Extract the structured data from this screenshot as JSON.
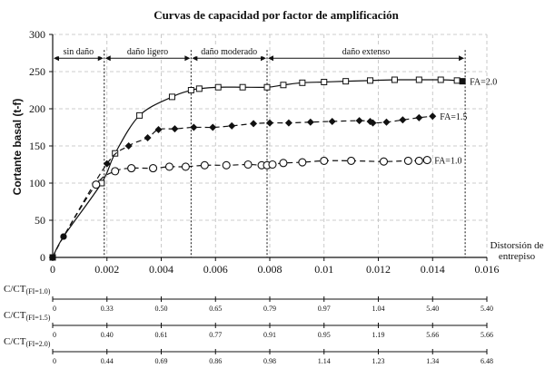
{
  "chart_data": {
    "type": "line",
    "title": "Curvas de capacidad por factor de amplificación",
    "ylabel": "Cortante basal (t-f)",
    "xlabel_lines": [
      "Distorsión de",
      "entrepiso"
    ],
    "xlim": [
      0,
      0.016
    ],
    "ylim": [
      0,
      300
    ],
    "x_ticks": [
      0,
      0.002,
      0.004,
      0.006,
      0.008,
      0.01,
      0.012,
      0.014,
      0.016
    ],
    "x_tick_labels": [
      "0",
      "0.002",
      "0.004",
      "0.006",
      "0.008",
      "0.01",
      "0.012",
      "0.014",
      "0.016"
    ],
    "y_ticks": [
      0,
      50,
      100,
      150,
      200,
      250,
      300
    ],
    "y_tick_labels": [
      "0",
      "50",
      "100",
      "150",
      "200",
      "250",
      "300"
    ],
    "grid": true,
    "damage_zones": [
      {
        "label": "sin daño",
        "x_start": 0,
        "x_end": 0.0019
      },
      {
        "label": "daño ligero",
        "x_start": 0.0019,
        "x_end": 0.0051
      },
      {
        "label": "daño moderado",
        "x_start": 0.0051,
        "x_end": 0.0079
      },
      {
        "label": "daño extenso",
        "x_start": 0.0079,
        "x_end": 0.0152
      }
    ],
    "zone_arrow_y": 268,
    "series": [
      {
        "name": "FA=2.0",
        "marker": "square",
        "line_style": "solid",
        "label_anchor": [
          0.0151,
          237
        ],
        "x": [
          0,
          0.0004,
          0.0018,
          0.0023,
          0.0032,
          0.0044,
          0.0051,
          0.0054,
          0.0061,
          0.007,
          0.0079,
          0.0085,
          0.0092,
          0.01,
          0.0108,
          0.0117,
          0.0126,
          0.0135,
          0.0143,
          0.0149,
          0.0151
        ],
        "y": [
          0,
          28,
          100,
          140,
          191,
          216,
          225,
          227,
          229,
          229,
          229,
          232,
          235,
          236,
          237,
          238,
          239,
          239,
          239,
          238,
          237
        ]
      },
      {
        "name": "FA=1.5",
        "marker": "diamond",
        "line_style": "dashed",
        "label_anchor": [
          0.014,
          190
        ],
        "x": [
          0,
          0.0004,
          0.002,
          0.0028,
          0.0035,
          0.0039,
          0.0045,
          0.0052,
          0.0059,
          0.0066,
          0.0074,
          0.008,
          0.0087,
          0.0095,
          0.0103,
          0.0113,
          0.0117,
          0.0118,
          0.0123,
          0.0129,
          0.0135,
          0.014
        ],
        "y": [
          0,
          28,
          126,
          150,
          161,
          172,
          173,
          175,
          175,
          177,
          180,
          181,
          181,
          182,
          183,
          184,
          183,
          181,
          182,
          185,
          188,
          190
        ]
      },
      {
        "name": "FA=1.0",
        "marker": "circle",
        "line_style": "dashed",
        "label_anchor": [
          0.0138,
          131
        ],
        "x": [
          0,
          0.0004,
          0.0016,
          0.0023,
          0.0029,
          0.0037,
          0.0043,
          0.0049,
          0.0056,
          0.0064,
          0.0072,
          0.0077,
          0.0079,
          0.0081,
          0.0085,
          0.0092,
          0.01,
          0.011,
          0.0122,
          0.0131,
          0.0135,
          0.0138
        ],
        "y": [
          0,
          28,
          98,
          116,
          120,
          120,
          122,
          122,
          124,
          124,
          125,
          124,
          124,
          125,
          127,
          128,
          130,
          130,
          129,
          130,
          130,
          131
        ]
      }
    ],
    "ratio_axes": [
      {
        "label_prefix": "C/CT",
        "label_subscript": "(FI=1.0)",
        "ticks_x": [
          0,
          0.002,
          0.004,
          0.006,
          0.008,
          0.01,
          0.012,
          0.014,
          0.016
        ],
        "tick_labels": [
          "0",
          "0.33",
          "0.50",
          "0.65",
          "0.79",
          "0.97",
          "1.04",
          "5.40",
          "5.40"
        ]
      },
      {
        "label_prefix": "C/CT",
        "label_subscript": "(FI=1.5)",
        "ticks_x": [
          0,
          0.002,
          0.004,
          0.006,
          0.008,
          0.01,
          0.012,
          0.014,
          0.016
        ],
        "tick_labels": [
          "0",
          "0.40",
          "0.61",
          "0.77",
          "0.91",
          "0.95",
          "1.19",
          "5.66",
          "5.66"
        ]
      },
      {
        "label_prefix": "C/CT",
        "label_subscript": "(FI=2.0)",
        "ticks_x": [
          0,
          0.002,
          0.004,
          0.006,
          0.008,
          0.01,
          0.012,
          0.014,
          0.016
        ],
        "tick_labels": [
          "0",
          "0.44",
          "0.69",
          "0.86",
          "0.98",
          "1.14",
          "1.23",
          "1.34",
          "6.48"
        ]
      }
    ]
  }
}
